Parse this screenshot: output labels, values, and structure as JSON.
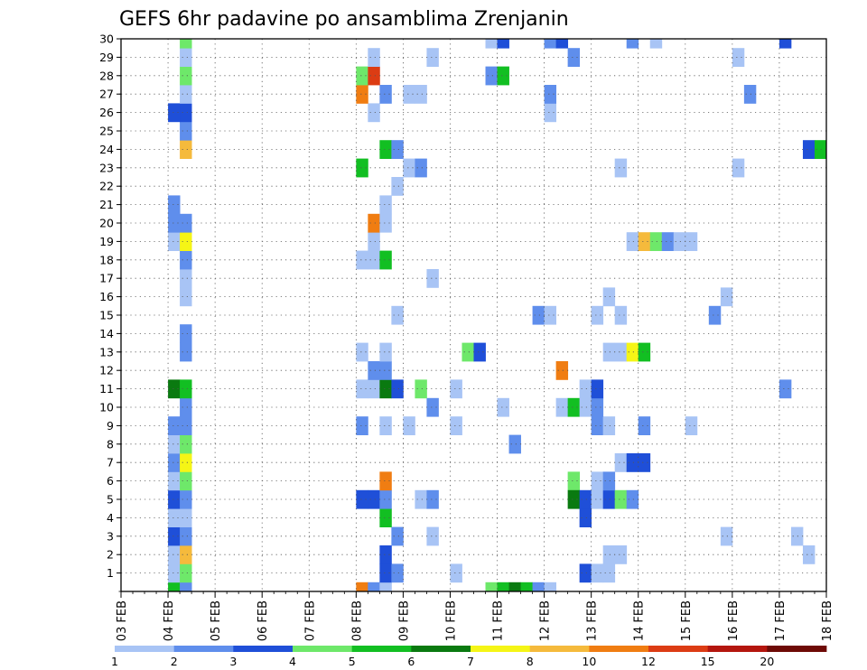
{
  "chart_data": {
    "type": "heatmap",
    "title": "GEFS 6hr padavine po ansamblima Zrenjanin",
    "xlabel": "",
    "ylabel": "",
    "x_unit": "6-hour steps from 03 FEB 00z",
    "xlim": [
      0,
      60
    ],
    "ylim": [
      0,
      30
    ],
    "x_ticks": [
      {
        "step": 0,
        "label": "03 FEB"
      },
      {
        "step": 4,
        "label": "04 FEB"
      },
      {
        "step": 8,
        "label": "05 FEB"
      },
      {
        "step": 12,
        "label": "06 FEB"
      },
      {
        "step": 16,
        "label": "07 FEB"
      },
      {
        "step": 20,
        "label": "08 FEB"
      },
      {
        "step": 24,
        "label": "09 FEB"
      },
      {
        "step": 28,
        "label": "10 FEB"
      },
      {
        "step": 32,
        "label": "11 FEB"
      },
      {
        "step": 36,
        "label": "12 FEB"
      },
      {
        "step": 40,
        "label": "13 FEB"
      },
      {
        "step": 44,
        "label": "14 FEB"
      },
      {
        "step": 48,
        "label": "15 FEB"
      },
      {
        "step": 52,
        "label": "16 FEB"
      },
      {
        "step": 56,
        "label": "17 FEB"
      },
      {
        "step": 60,
        "label": "18 FEB"
      }
    ],
    "y_ticks": [
      "1",
      "2",
      "3",
      "4",
      "5",
      "6",
      "7",
      "8",
      "9",
      "10",
      "11",
      "12",
      "13",
      "14",
      "15",
      "16",
      "17",
      "18",
      "19",
      "20",
      "21",
      "22",
      "23",
      "24",
      "25",
      "26",
      "27",
      "28",
      "29",
      "30"
    ],
    "grid": true,
    "legend": {
      "position": "bottom",
      "labels": [
        "1",
        "2",
        "3",
        "4",
        "5",
        "6",
        "7",
        "8",
        "10",
        "12",
        "15",
        "20"
      ],
      "colors": [
        "#a8c4f5",
        "#5f8eec",
        "#1f4fd8",
        "#6ee86a",
        "#12bf22",
        "#0a7a10",
        "#f5f516",
        "#f5ba3c",
        "#f07d12",
        "#dc3c14",
        "#b4160e",
        "#6e0a06"
      ]
    },
    "cells": [
      {
        "step": 4,
        "member": 0,
        "level": 5
      },
      {
        "step": 5,
        "member": 0,
        "level": 2
      },
      {
        "step": 4,
        "member": 1,
        "level": 1
      },
      {
        "step": 5,
        "member": 1,
        "level": 4
      },
      {
        "step": 4,
        "member": 2,
        "level": 1
      },
      {
        "step": 5,
        "member": 2,
        "level": 8
      },
      {
        "step": 4,
        "member": 3,
        "level": 3
      },
      {
        "step": 5,
        "member": 3,
        "level": 2
      },
      {
        "step": 4,
        "member": 4,
        "level": 1
      },
      {
        "step": 5,
        "member": 4,
        "level": 1
      },
      {
        "step": 4,
        "member": 5,
        "level": 3
      },
      {
        "step": 5,
        "member": 5,
        "level": 2
      },
      {
        "step": 4,
        "member": 6,
        "level": 1
      },
      {
        "step": 5,
        "member": 6,
        "level": 4
      },
      {
        "step": 4,
        "member": 7,
        "level": 2
      },
      {
        "step": 5,
        "member": 7,
        "level": 7
      },
      {
        "step": 4,
        "member": 8,
        "level": 1
      },
      {
        "step": 5,
        "member": 8,
        "level": 4
      },
      {
        "step": 4,
        "member": 9,
        "level": 2
      },
      {
        "step": 5,
        "member": 9,
        "level": 2
      },
      {
        "step": 5,
        "member": 10,
        "level": 2
      },
      {
        "step": 4,
        "member": 11,
        "level": 6
      },
      {
        "step": 5,
        "member": 11,
        "level": 5
      },
      {
        "step": 5,
        "member": 13,
        "level": 2
      },
      {
        "step": 5,
        "member": 14,
        "level": 2
      },
      {
        "step": 5,
        "member": 16,
        "level": 1
      },
      {
        "step": 5,
        "member": 17,
        "level": 1
      },
      {
        "step": 5,
        "member": 18,
        "level": 2
      },
      {
        "step": 4,
        "member": 19,
        "level": 1
      },
      {
        "step": 5,
        "member": 19,
        "level": 7
      },
      {
        "step": 4,
        "member": 20,
        "level": 2
      },
      {
        "step": 5,
        "member": 20,
        "level": 2
      },
      {
        "step": 4,
        "member": 21,
        "level": 2
      },
      {
        "step": 5,
        "member": 24,
        "level": 8
      },
      {
        "step": 5,
        "member": 25,
        "level": 2
      },
      {
        "step": 4,
        "member": 26,
        "level": 3
      },
      {
        "step": 5,
        "member": 26,
        "level": 3
      },
      {
        "step": 5,
        "member": 27,
        "level": 1
      },
      {
        "step": 5,
        "member": 28,
        "level": 4
      },
      {
        "step": 5,
        "member": 29,
        "level": 1
      },
      {
        "step": 5,
        "member": 30,
        "level": 4
      },
      {
        "step": 5,
        "member": 31,
        "level": 1
      },
      {
        "step": 20,
        "member": 0,
        "level": 9
      },
      {
        "step": 21,
        "member": 0,
        "level": 2
      },
      {
        "step": 22,
        "member": 0,
        "level": 1
      },
      {
        "step": 22,
        "member": 1,
        "level": 3
      },
      {
        "step": 23,
        "member": 1,
        "level": 2
      },
      {
        "step": 22,
        "member": 2,
        "level": 3
      },
      {
        "step": 23,
        "member": 3,
        "level": 2
      },
      {
        "step": 22,
        "member": 4,
        "level": 5
      },
      {
        "step": 20,
        "member": 5,
        "level": 3
      },
      {
        "step": 21,
        "member": 5,
        "level": 3
      },
      {
        "step": 22,
        "member": 5,
        "level": 2
      },
      {
        "step": 22,
        "member": 6,
        "level": 9
      },
      {
        "step": 20,
        "member": 9,
        "level": 2
      },
      {
        "step": 22,
        "member": 9,
        "level": 1
      },
      {
        "step": 24,
        "member": 9,
        "level": 1
      },
      {
        "step": 20,
        "member": 11,
        "level": 1
      },
      {
        "step": 21,
        "member": 11,
        "level": 1
      },
      {
        "step": 22,
        "member": 11,
        "level": 6
      },
      {
        "step": 23,
        "member": 11,
        "level": 3
      },
      {
        "step": 21,
        "member": 12,
        "level": 2
      },
      {
        "step": 22,
        "member": 12,
        "level": 2
      },
      {
        "step": 20,
        "member": 13,
        "level": 1
      },
      {
        "step": 22,
        "member": 13,
        "level": 1
      },
      {
        "step": 23,
        "member": 15,
        "level": 1
      },
      {
        "step": 20,
        "member": 18,
        "level": 1
      },
      {
        "step": 21,
        "member": 18,
        "level": 1
      },
      {
        "step": 22,
        "member": 18,
        "level": 5
      },
      {
        "step": 21,
        "member": 19,
        "level": 1
      },
      {
        "step": 21,
        "member": 20,
        "level": 9
      },
      {
        "step": 22,
        "member": 20,
        "level": 1
      },
      {
        "step": 22,
        "member": 21,
        "level": 1
      },
      {
        "step": 23,
        "member": 22,
        "level": 1
      },
      {
        "step": 20,
        "member": 23,
        "level": 5
      },
      {
        "step": 22,
        "member": 24,
        "level": 5
      },
      {
        "step": 23,
        "member": 24,
        "level": 2
      },
      {
        "step": 21,
        "member": 26,
        "level": 1
      },
      {
        "step": 20,
        "member": 27,
        "level": 9
      },
      {
        "step": 22,
        "member": 27,
        "level": 2
      },
      {
        "step": 20,
        "member": 28,
        "level": 4
      },
      {
        "step": 21,
        "member": 28,
        "level": 10
      },
      {
        "step": 21,
        "member": 29,
        "level": 1
      },
      {
        "step": 25,
        "member": 5,
        "level": 1
      },
      {
        "step": 26,
        "member": 5,
        "level": 2
      },
      {
        "step": 26,
        "member": 3,
        "level": 1
      },
      {
        "step": 26,
        "member": 10,
        "level": 2
      },
      {
        "step": 25,
        "member": 11,
        "level": 4
      },
      {
        "step": 24,
        "member": 23,
        "level": 1
      },
      {
        "step": 25,
        "member": 23,
        "level": 2
      },
      {
        "step": 24,
        "member": 27,
        "level": 1
      },
      {
        "step": 25,
        "member": 27,
        "level": 1
      },
      {
        "step": 26,
        "member": 29,
        "level": 1
      },
      {
        "step": 26,
        "member": 17,
        "level": 1
      },
      {
        "step": 28,
        "member": 1,
        "level": 1
      },
      {
        "step": 28,
        "member": 9,
        "level": 1
      },
      {
        "step": 28,
        "member": 11,
        "level": 1
      },
      {
        "step": 29,
        "member": 13,
        "level": 4
      },
      {
        "step": 30,
        "member": 13,
        "level": 3
      },
      {
        "step": 31,
        "member": 0,
        "level": 4
      },
      {
        "step": 32,
        "member": 0,
        "level": 5
      },
      {
        "step": 33,
        "member": 0,
        "level": 6
      },
      {
        "step": 34,
        "member": 0,
        "level": 5
      },
      {
        "step": 35,
        "member": 0,
        "level": 2
      },
      {
        "step": 36,
        "member": 0,
        "level": 1
      },
      {
        "step": 33,
        "member": 8,
        "level": 2
      },
      {
        "step": 32,
        "member": 10,
        "level": 1
      },
      {
        "step": 31,
        "member": 28,
        "level": 2
      },
      {
        "step": 32,
        "member": 28,
        "level": 5
      },
      {
        "step": 31,
        "member": 30,
        "level": 1
      },
      {
        "step": 32,
        "member": 30,
        "level": 3
      },
      {
        "step": 35,
        "member": 15,
        "level": 2
      },
      {
        "step": 36,
        "member": 15,
        "level": 1
      },
      {
        "step": 36,
        "member": 26,
        "level": 1
      },
      {
        "step": 36,
        "member": 27,
        "level": 2
      },
      {
        "step": 36,
        "member": 30,
        "level": 2
      },
      {
        "step": 37,
        "member": 30,
        "level": 3
      },
      {
        "step": 37,
        "member": 10,
        "level": 1
      },
      {
        "step": 38,
        "member": 10,
        "level": 5
      },
      {
        "step": 37,
        "member": 12,
        "level": 9
      },
      {
        "step": 38,
        "member": 6,
        "level": 4
      },
      {
        "step": 38,
        "member": 29,
        "level": 2
      },
      {
        "step": 38,
        "member": 5,
        "level": 6
      },
      {
        "step": 39,
        "member": 5,
        "level": 3
      },
      {
        "step": 39,
        "member": 4,
        "level": 3
      },
      {
        "step": 39,
        "member": 10,
        "level": 1
      },
      {
        "step": 39,
        "member": 1,
        "level": 3
      },
      {
        "step": 40,
        "member": 1,
        "level": 1
      },
      {
        "step": 41,
        "member": 1,
        "level": 1
      },
      {
        "step": 40,
        "member": 5,
        "level": 1
      },
      {
        "step": 41,
        "member": 5,
        "level": 3
      },
      {
        "step": 42,
        "member": 5,
        "level": 4
      },
      {
        "step": 43,
        "member": 5,
        "level": 2
      },
      {
        "step": 40,
        "member": 6,
        "level": 1
      },
      {
        "step": 41,
        "member": 6,
        "level": 2
      },
      {
        "step": 40,
        "member": 9,
        "level": 2
      },
      {
        "step": 41,
        "member": 9,
        "level": 1
      },
      {
        "step": 40,
        "member": 10,
        "level": 2
      },
      {
        "step": 39,
        "member": 11,
        "level": 1
      },
      {
        "step": 40,
        "member": 11,
        "level": 3
      },
      {
        "step": 40,
        "member": 15,
        "level": 1
      },
      {
        "step": 41,
        "member": 2,
        "level": 1
      },
      {
        "step": 42,
        "member": 2,
        "level": 1
      },
      {
        "step": 42,
        "member": 7,
        "level": 1
      },
      {
        "step": 43,
        "member": 7,
        "level": 3
      },
      {
        "step": 44,
        "member": 7,
        "level": 3
      },
      {
        "step": 41,
        "member": 13,
        "level": 1
      },
      {
        "step": 42,
        "member": 13,
        "level": 1
      },
      {
        "step": 43,
        "member": 13,
        "level": 7
      },
      {
        "step": 44,
        "member": 13,
        "level": 5
      },
      {
        "step": 41,
        "member": 16,
        "level": 1
      },
      {
        "step": 42,
        "member": 15,
        "level": 1
      },
      {
        "step": 42,
        "member": 23,
        "level": 1
      },
      {
        "step": 43,
        "member": 19,
        "level": 1
      },
      {
        "step": 44,
        "member": 19,
        "level": 8
      },
      {
        "step": 45,
        "member": 19,
        "level": 4
      },
      {
        "step": 46,
        "member": 19,
        "level": 2
      },
      {
        "step": 47,
        "member": 19,
        "level": 1
      },
      {
        "step": 48,
        "member": 19,
        "level": 1
      },
      {
        "step": 44,
        "member": 9,
        "level": 2
      },
      {
        "step": 43,
        "member": 30,
        "level": 2
      },
      {
        "step": 45,
        "member": 30,
        "level": 1
      },
      {
        "step": 48,
        "member": 9,
        "level": 1
      },
      {
        "step": 50,
        "member": 15,
        "level": 2
      },
      {
        "step": 51,
        "member": 16,
        "level": 1
      },
      {
        "step": 51,
        "member": 3,
        "level": 1
      },
      {
        "step": 52,
        "member": 23,
        "level": 1
      },
      {
        "step": 52,
        "member": 29,
        "level": 1
      },
      {
        "step": 53,
        "member": 27,
        "level": 2
      },
      {
        "step": 56,
        "member": 11,
        "level": 2
      },
      {
        "step": 56,
        "member": 30,
        "level": 3
      },
      {
        "step": 57,
        "member": 3,
        "level": 1
      },
      {
        "step": 58,
        "member": 2,
        "level": 1
      },
      {
        "step": 58,
        "member": 24,
        "level": 3
      },
      {
        "step": 59,
        "member": 24,
        "level": 5
      }
    ]
  }
}
